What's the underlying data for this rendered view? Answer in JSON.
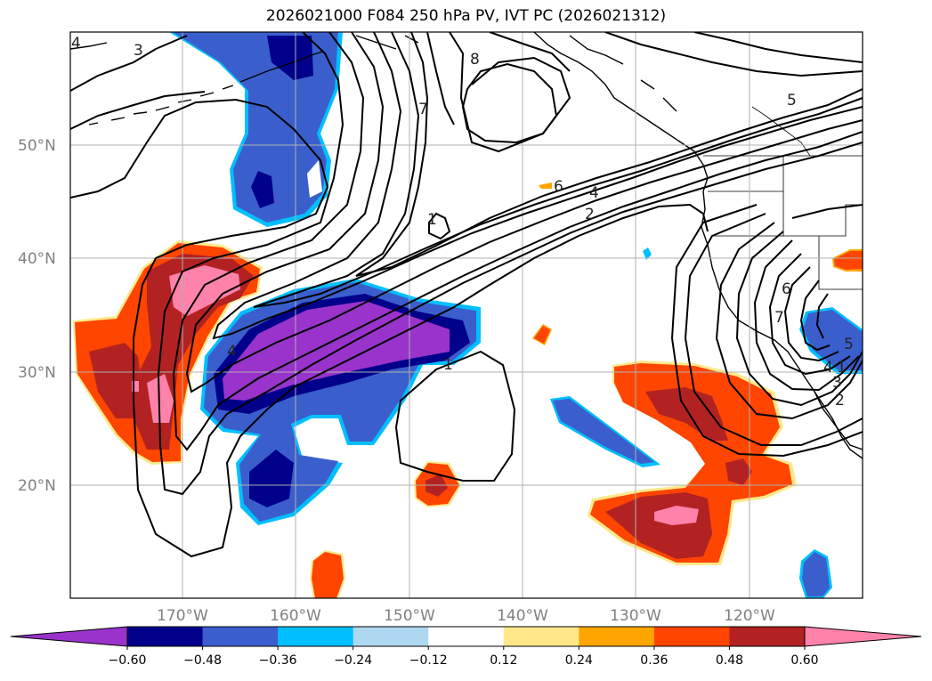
{
  "title": "2026021000 F084 250 hPa PV, IVT PC (2026021312)",
  "map": {
    "lat_labels": [
      "50°N",
      "40°N",
      "30°N",
      "20°N"
    ],
    "lon_labels": [
      "170°W",
      "160°W",
      "150°W",
      "140°W",
      "130°W",
      "120°W"
    ],
    "contour_labels": [
      "3",
      "4",
      "8",
      "7",
      "1",
      "6",
      "4",
      "2",
      "5",
      "1",
      "4",
      "1",
      "6",
      "7",
      "5",
      "4",
      "3",
      "2"
    ],
    "shading_colors": {
      "purple": "#9933cc",
      "navy": "#00008b",
      "blue": "#3a5fcd",
      "cyan": "#00bfff",
      "lightblue": "#add8f0",
      "yellow": "#ffe88a",
      "orange": "#ffa500",
      "redorange": "#ff4500",
      "darkred": "#b22222",
      "pink": "#ff82ab"
    }
  },
  "colorbar": {
    "colors": [
      "#9933cc",
      "#00008b",
      "#3a5fcd",
      "#00bfff",
      "#add8f0",
      "#ffffff",
      "#ffe88a",
      "#ffa500",
      "#ff4500",
      "#b22222",
      "#ff82ab"
    ],
    "tick_labels": [
      "−0.60",
      "−0.48",
      "−0.36",
      "−0.24",
      "−0.12",
      "0.12",
      "0.24",
      "0.36",
      "0.48",
      "0.60"
    ]
  }
}
